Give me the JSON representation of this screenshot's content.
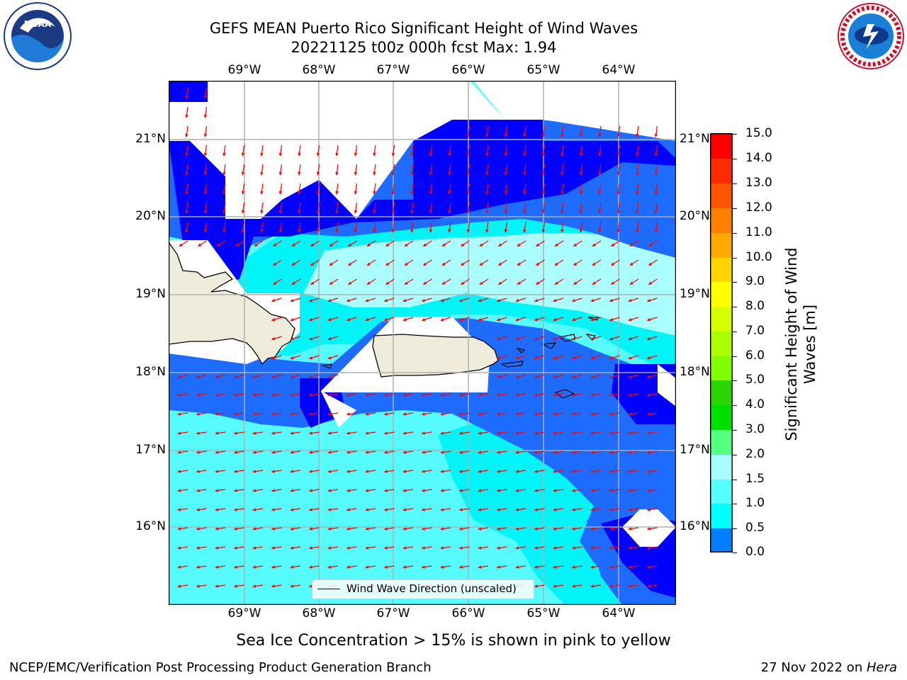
{
  "title": {
    "line1": "GEFS MEAN Puerto Rico Significant Height of Wind Waves",
    "line2": "20221125 t00z 000h fcst   Max: 1.94"
  },
  "axes": {
    "lon_labels": [
      "69°W",
      "68°W",
      "67°W",
      "66°W",
      "65°W",
      "64°W"
    ],
    "lat_labels": [
      "21°N",
      "20°N",
      "19°N",
      "18°N",
      "17°N",
      "16°N"
    ]
  },
  "legend": {
    "label": "Wind Wave Direction (unscaled)"
  },
  "colorbar": {
    "label": "Significant Height of Wind Waves [m]",
    "ticks": [
      "15.0",
      "14.0",
      "13.0",
      "12.0",
      "11.0",
      "10.0",
      "9.0",
      "8.0",
      "7.0",
      "6.0",
      "5.0",
      "4.0",
      "3.0",
      "2.0",
      "1.5",
      "1.0",
      "0.5",
      "0.0"
    ],
    "colors": [
      "#ff0000",
      "#ff2a00",
      "#ff5500",
      "#ff8000",
      "#ffaa00",
      "#ffd500",
      "#ffff00",
      "#d5ff00",
      "#aaff00",
      "#80ff00",
      "#2bd500",
      "#00e000",
      "#55ff80",
      "#a6ffff",
      "#55ffff",
      "#00ffff",
      "#0080ff",
      "#0000ff"
    ]
  },
  "caption": "Sea Ice Concentration > 15% is shown in pink to yellow",
  "footer": {
    "left": "NCEP/EMC/Verification Post Processing Product Generation Branch",
    "right_prefix": "27 Nov 2022 on ",
    "right_host": "Hera"
  },
  "logos": {
    "noaa": "NOAA",
    "nws": "NATIONAL WEATHER SERVICE"
  },
  "map_colors": {
    "band_0_0_5": "#0000ff",
    "band_0_5_1": "#1e6cff",
    "band_1_1_5": "#00f4f8",
    "band_1_5_2": "#55fbff",
    "band_2_3": "#aafeff",
    "land": "#efecdc",
    "arrow": "#ff0000",
    "grid": "#b0b0b0"
  }
}
